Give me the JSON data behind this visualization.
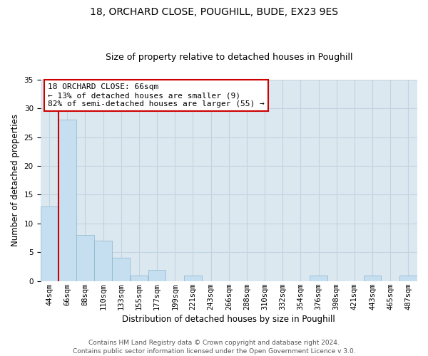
{
  "title": "18, ORCHARD CLOSE, POUGHILL, BUDE, EX23 9ES",
  "subtitle": "Size of property relative to detached houses in Poughill",
  "xlabel": "Distribution of detached houses by size in Poughill",
  "ylabel": "Number of detached properties",
  "bin_labels": [
    "44sqm",
    "66sqm",
    "88sqm",
    "110sqm",
    "133sqm",
    "155sqm",
    "177sqm",
    "199sqm",
    "221sqm",
    "243sqm",
    "266sqm",
    "288sqm",
    "310sqm",
    "332sqm",
    "354sqm",
    "376sqm",
    "398sqm",
    "421sqm",
    "443sqm",
    "465sqm",
    "487sqm"
  ],
  "bar_heights": [
    13,
    28,
    8,
    7,
    4,
    1,
    2,
    0,
    1,
    0,
    0,
    0,
    0,
    0,
    0,
    1,
    0,
    0,
    1,
    0,
    1
  ],
  "bar_color": "#c5dff0",
  "bar_edge_color": "#8ab4cc",
  "highlight_color": "#cc0000",
  "highlight_bin_index": 1,
  "ylim": [
    0,
    35
  ],
  "yticks": [
    0,
    5,
    10,
    15,
    20,
    25,
    30,
    35
  ],
  "annotation_line1": "18 ORCHARD CLOSE: 66sqm",
  "annotation_line2": "← 13% of detached houses are smaller (9)",
  "annotation_line3": "82% of semi-detached houses are larger (55) →",
  "annotation_box_facecolor": "#ffffff",
  "annotation_box_edgecolor": "#cc0000",
  "footer_line1": "Contains HM Land Registry data © Crown copyright and database right 2024.",
  "footer_line2": "Contains public sector information licensed under the Open Government Licence v 3.0.",
  "background_color": "#ffffff",
  "plot_bg_color": "#dce8f0",
  "grid_color": "#c0d4e0",
  "title_fontsize": 10,
  "subtitle_fontsize": 9,
  "axis_label_fontsize": 8.5,
  "tick_fontsize": 7.5,
  "annotation_fontsize": 8,
  "footer_fontsize": 6.5
}
